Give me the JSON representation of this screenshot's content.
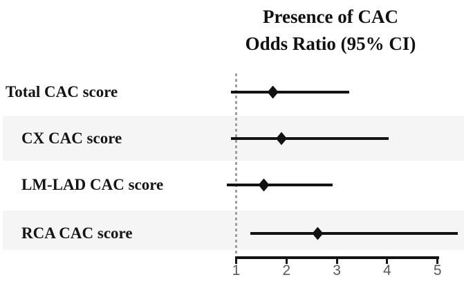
{
  "title": {
    "line1": "Presence of CAC",
    "line2": "Odds Ratio (95% CI)"
  },
  "chart_data": {
    "type": "forest",
    "title": "Presence of CAC",
    "subtitle": "Odds Ratio (95% CI)",
    "x_axis": {
      "ticks": [
        1,
        2,
        3,
        4,
        5
      ],
      "range_shown": [
        1,
        5
      ],
      "reference_line": 1
    },
    "rows": [
      {
        "label": "Total CAC score",
        "or": 1.73,
        "ci_low": 0.9,
        "ci_high": 3.25,
        "indent": false,
        "shaded": false
      },
      {
        "label": "CX CAC score",
        "or": 1.9,
        "ci_low": 0.9,
        "ci_high": 4.03,
        "indent": true,
        "shaded": true
      },
      {
        "label": "LM-LAD CAC score",
        "or": 1.55,
        "ci_low": 0.82,
        "ci_high": 2.92,
        "indent": true,
        "shaded": false
      },
      {
        "label": "RCA CAC score",
        "or": 2.62,
        "ci_low": 1.28,
        "ci_high": 5.4,
        "indent": true,
        "shaded": true
      }
    ],
    "legend": null,
    "grid": false
  },
  "colors": {
    "text": "#111111",
    "band": "#f5f5f5",
    "marker": "#121212",
    "axis": "#141414",
    "tick_label": "#5a5a5a",
    "reference_line": "#9e9e9e"
  }
}
